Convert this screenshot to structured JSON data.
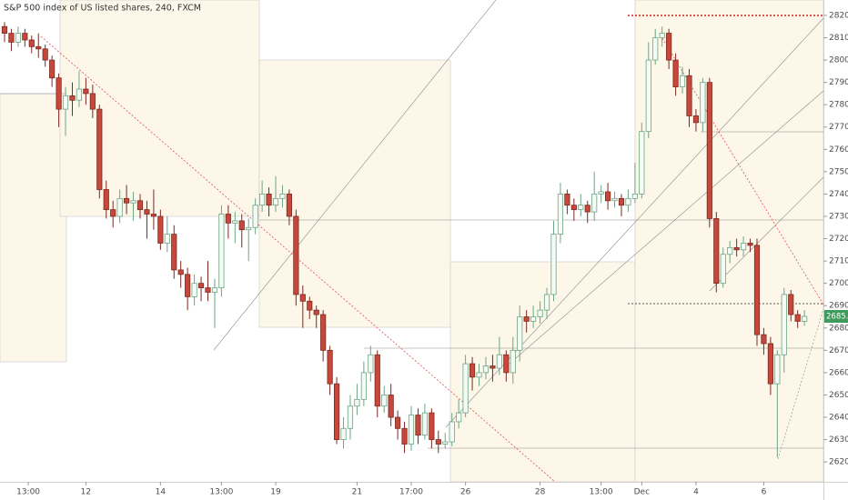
{
  "chart_data": {
    "type": "candlestick",
    "title": "S&P 500 index of US listed shares, 240, FXCM",
    "up_color": "#6ba583",
    "down_color": "#c8473b",
    "last_price": 2685.2,
    "last_price_color": "#3f9a5b",
    "xlim": [
      -0.67,
      120.8
    ],
    "ylim": [
      2611.1,
      2826.9
    ],
    "yticks": [
      2620,
      2630,
      2640,
      2650,
      2660,
      2670,
      2680,
      2690,
      2700,
      2710,
      2720,
      2730,
      2740,
      2750,
      2760,
      2770,
      2780,
      2790,
      2800,
      2810,
      2820
    ],
    "xticks": [
      {
        "value": 3.5,
        "label": "13:00"
      },
      {
        "value": 12,
        "label": "12"
      },
      {
        "value": 23,
        "label": "14"
      },
      {
        "value": 32,
        "label": "13:00"
      },
      {
        "value": 40,
        "label": "19"
      },
      {
        "value": 52,
        "label": "21"
      },
      {
        "value": 60,
        "label": "17:00"
      },
      {
        "value": 68,
        "label": "26"
      },
      {
        "value": 79,
        "label": "28"
      },
      {
        "value": 88,
        "label": "13:00"
      },
      {
        "value": 94,
        "label": "Dec"
      },
      {
        "value": 102,
        "label": "4"
      },
      {
        "value": 112,
        "label": "6"
      }
    ],
    "ohlc": [
      [
        2815,
        2817,
        2808,
        2812
      ],
      [
        2812,
        2814,
        2804,
        2808
      ],
      [
        2808,
        2815,
        2806,
        2812
      ],
      [
        2812,
        2814,
        2806,
        2809
      ],
      [
        2809,
        2811,
        2803,
        2806
      ],
      [
        2806,
        2812,
        2801,
        2805
      ],
      [
        2805,
        2807,
        2797,
        2800
      ],
      [
        2800,
        2802,
        2788,
        2792
      ],
      [
        2792,
        2794,
        2770,
        2778
      ],
      [
        2778,
        2788,
        2766,
        2784
      ],
      [
        2784,
        2790,
        2775,
        2782
      ],
      [
        2782,
        2795,
        2779,
        2787
      ],
      [
        2787,
        2792,
        2780,
        2785
      ],
      [
        2785,
        2789,
        2774,
        2778
      ],
      [
        2778,
        2780,
        2738,
        2742
      ],
      [
        2742,
        2746,
        2729,
        2733
      ],
      [
        2733,
        2737,
        2725,
        2730
      ],
      [
        2730,
        2742,
        2727,
        2738
      ],
      [
        2738,
        2744,
        2731,
        2736
      ],
      [
        2736,
        2741,
        2728,
        2737
      ],
      [
        2737,
        2740,
        2729,
        2733
      ],
      [
        2733,
        2737,
        2720,
        2731
      ],
      [
        2731,
        2742,
        2724,
        2730
      ],
      [
        2730,
        2733,
        2715,
        2718
      ],
      [
        2718,
        2730,
        2714,
        2722
      ],
      [
        2722,
        2726,
        2702,
        2706
      ],
      [
        2706,
        2710,
        2698,
        2704
      ],
      [
        2704,
        2707,
        2688,
        2694
      ],
      [
        2694,
        2704,
        2690,
        2700
      ],
      [
        2700,
        2703,
        2692,
        2698
      ],
      [
        2698,
        2710,
        2692,
        2696
      ],
      [
        2696,
        2702,
        2680,
        2698
      ],
      [
        2698,
        2735,
        2694,
        2731
      ],
      [
        2731,
        2735,
        2720,
        2727
      ],
      [
        2727,
        2732,
        2718,
        2728
      ],
      [
        2728,
        2731,
        2716,
        2724
      ],
      [
        2724,
        2729,
        2710,
        2725
      ],
      [
        2725,
        2738,
        2722,
        2735
      ],
      [
        2735,
        2746,
        2732,
        2740
      ],
      [
        2740,
        2743,
        2730,
        2735
      ],
      [
        2735,
        2748,
        2732,
        2738
      ],
      [
        2738,
        2744,
        2734,
        2740
      ],
      [
        2740,
        2742,
        2726,
        2730
      ],
      [
        2730,
        2733,
        2690,
        2695
      ],
      [
        2695,
        2699,
        2680,
        2692
      ],
      [
        2692,
        2694,
        2684,
        2688
      ],
      [
        2688,
        2690,
        2680,
        2686
      ],
      [
        2686,
        2688,
        2665,
        2670
      ],
      [
        2670,
        2672,
        2650,
        2655
      ],
      [
        2655,
        2658,
        2628,
        2630
      ],
      [
        2630,
        2640,
        2626,
        2635
      ],
      [
        2635,
        2650,
        2630,
        2645
      ],
      [
        2645,
        2655,
        2641,
        2648
      ],
      [
        2648,
        2665,
        2645,
        2660
      ],
      [
        2660,
        2672,
        2656,
        2668
      ],
      [
        2668,
        2670,
        2640,
        2645
      ],
      [
        2645,
        2654,
        2642,
        2650
      ],
      [
        2650,
        2655,
        2636,
        2640
      ],
      [
        2640,
        2643,
        2630,
        2635
      ],
      [
        2635,
        2638,
        2624,
        2628
      ],
      [
        2628,
        2645,
        2625,
        2641
      ],
      [
        2641,
        2644,
        2628,
        2632
      ],
      [
        2632,
        2646,
        2630,
        2642
      ],
      [
        2642,
        2644,
        2626,
        2630
      ],
      [
        2630,
        2634,
        2624,
        2628
      ],
      [
        2628,
        2633,
        2626,
        2629
      ],
      [
        2629,
        2642,
        2627,
        2638
      ],
      [
        2638,
        2648,
        2635,
        2642
      ],
      [
        2642,
        2668,
        2640,
        2664
      ],
      [
        2664,
        2667,
        2652,
        2658
      ],
      [
        2658,
        2664,
        2654,
        2660
      ],
      [
        2660,
        2667,
        2657,
        2663
      ],
      [
        2663,
        2668,
        2656,
        2662
      ],
      [
        2662,
        2676,
        2659,
        2668
      ],
      [
        2668,
        2670,
        2656,
        2660
      ],
      [
        2660,
        2676,
        2655,
        2670
      ],
      [
        2670,
        2690,
        2665,
        2685
      ],
      [
        2685,
        2688,
        2678,
        2683
      ],
      [
        2683,
        2690,
        2680,
        2685
      ],
      [
        2685,
        2692,
        2682,
        2688
      ],
      [
        2688,
        2698,
        2684,
        2695
      ],
      [
        2695,
        2728,
        2692,
        2722
      ],
      [
        2722,
        2745,
        2718,
        2740
      ],
      [
        2740,
        2742,
        2731,
        2735
      ],
      [
        2735,
        2738,
        2728,
        2733
      ],
      [
        2733,
        2740,
        2730,
        2735
      ],
      [
        2735,
        2737,
        2727,
        2732
      ],
      [
        2732,
        2750,
        2728,
        2740
      ],
      [
        2740,
        2744,
        2736,
        2741
      ],
      [
        2741,
        2745,
        2733,
        2737
      ],
      [
        2737,
        2741,
        2734,
        2738
      ],
      [
        2738,
        2740,
        2730,
        2735
      ],
      [
        2735,
        2742,
        2732,
        2738
      ],
      [
        2738,
        2754,
        2736,
        2740
      ],
      [
        2740,
        2772,
        2738,
        2768
      ],
      [
        2768,
        2808,
        2765,
        2800
      ],
      [
        2800,
        2814,
        2798,
        2810
      ],
      [
        2810,
        2815,
        2806,
        2812
      ],
      [
        2812,
        2814,
        2796,
        2800
      ],
      [
        2800,
        2803,
        2784,
        2788
      ],
      [
        2788,
        2797,
        2785,
        2793
      ],
      [
        2793,
        2796,
        2770,
        2775
      ],
      [
        2775,
        2778,
        2768,
        2772
      ],
      [
        2772,
        2792,
        2768,
        2790
      ],
      [
        2790,
        2792,
        2725,
        2729
      ],
      [
        2729,
        2732,
        2696,
        2700
      ],
      [
        2700,
        2716,
        2698,
        2713
      ],
      [
        2713,
        2719,
        2709,
        2716
      ],
      [
        2716,
        2720,
        2712,
        2715
      ],
      [
        2715,
        2721,
        2712,
        2718
      ],
      [
        2718,
        2720,
        2714,
        2717
      ],
      [
        2717,
        2720,
        2672,
        2677
      ],
      [
        2677,
        2680,
        2668,
        2673
      ],
      [
        2673,
        2676,
        2650,
        2655
      ],
      [
        2655,
        2670,
        2622,
        2668
      ],
      [
        2668,
        2698,
        2660,
        2695
      ],
      [
        2695,
        2697,
        2683,
        2686
      ],
      [
        2686,
        2688,
        2680,
        2683
      ],
      [
        2683,
        2688,
        2681,
        2685.2
      ]
    ]
  }
}
